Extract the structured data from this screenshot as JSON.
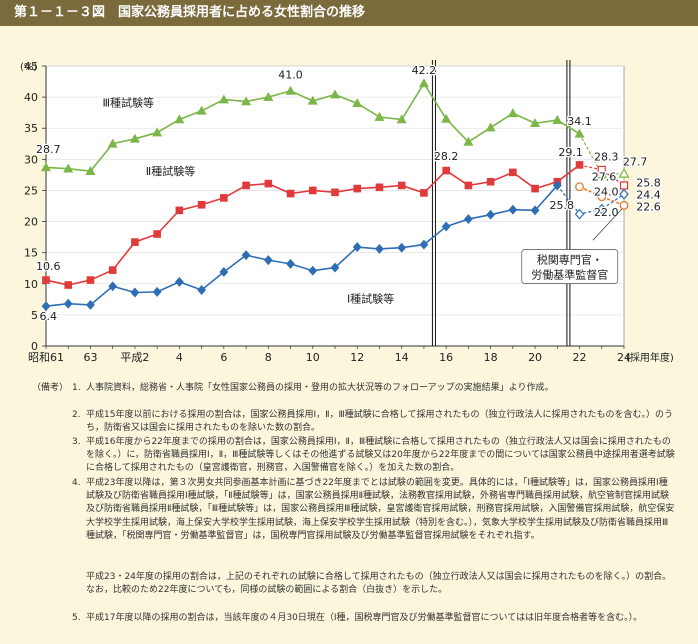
{
  "title": "第１－１－３図　国家公務員採用者に占める女性割合の推移",
  "chart_data": {
    "type": "line",
    "ylabel": "(%)",
    "xlabel": "(採用年度)",
    "ylim": [
      0,
      45
    ],
    "yticks": [
      0,
      5,
      10,
      15,
      20,
      25,
      30,
      35,
      40,
      45
    ],
    "xtick_labels": [
      {
        "year": 1986,
        "label": "昭和61"
      },
      {
        "year": 1988,
        "label": "63"
      },
      {
        "year": 1990,
        "label": "平成2"
      },
      {
        "year": 1992,
        "label": "4"
      },
      {
        "year": 1994,
        "label": "6"
      },
      {
        "year": 1996,
        "label": "8"
      },
      {
        "year": 1998,
        "label": "10"
      },
      {
        "year": 2000,
        "label": "12"
      },
      {
        "year": 2002,
        "label": "14"
      },
      {
        "year": 2004,
        "label": "16"
      },
      {
        "year": 2006,
        "label": "18"
      },
      {
        "year": 2008,
        "label": "20"
      },
      {
        "year": 2010,
        "label": "22"
      },
      {
        "year": 2012,
        "label": "24"
      }
    ],
    "series": [
      {
        "name": "Ⅲ種試験等",
        "color": "#7ab648",
        "marker": "triangle",
        "x": [
          1986,
          1987,
          1988,
          1989,
          1990,
          1991,
          1992,
          1993,
          1994,
          1995,
          1996,
          1997,
          1998,
          1999,
          2000,
          2001,
          2002,
          2003,
          2004,
          2005,
          2006,
          2007,
          2008,
          2009,
          2010
        ],
        "values": [
          28.7,
          28.5,
          28.1,
          32.5,
          33.3,
          34.3,
          36.4,
          37.8,
          39.6,
          39.3,
          40.0,
          41.0,
          39.4,
          40.4,
          39.0,
          36.8,
          36.4,
          42.2,
          36.5,
          32.8,
          35.1,
          37.4,
          35.8,
          36.3,
          34.1
        ],
        "projection": {
          "x": [
            2010,
            2011,
            2012
          ],
          "values": [
            34.1,
            27.6,
            27.7
          ]
        }
      },
      {
        "name": "Ⅱ種試験等",
        "color": "#e03a3a",
        "marker": "square",
        "x": [
          1986,
          1987,
          1988,
          1989,
          1990,
          1991,
          1992,
          1993,
          1994,
          1995,
          1996,
          1997,
          1998,
          1999,
          2000,
          2001,
          2002,
          2003,
          2004,
          2005,
          2006,
          2007,
          2008,
          2009,
          2010
        ],
        "values": [
          10.6,
          9.8,
          10.6,
          12.2,
          16.7,
          18.0,
          21.8,
          22.7,
          23.8,
          25.8,
          26.1,
          24.5,
          25.0,
          24.7,
          25.3,
          25.5,
          25.8,
          24.6,
          28.2,
          25.8,
          26.4,
          27.9,
          25.3,
          26.4,
          29.1
        ],
        "projection": {
          "x": [
            2010,
            2011,
            2012
          ],
          "values": [
            29.1,
            28.3,
            25.8
          ]
        }
      },
      {
        "name": "Ⅰ種試験等",
        "color": "#2f6eb5",
        "marker": "diamond",
        "x": [
          1986,
          1987,
          1988,
          1989,
          1990,
          1991,
          1992,
          1993,
          1994,
          1995,
          1996,
          1997,
          1998,
          1999,
          2000,
          2001,
          2002,
          2003,
          2004,
          2005,
          2006,
          2007,
          2008,
          2009
        ],
        "values": [
          6.4,
          6.8,
          6.6,
          9.6,
          8.6,
          8.7,
          10.3,
          9.0,
          11.9,
          14.6,
          13.8,
          13.2,
          12.1,
          12.6,
          15.9,
          15.6,
          15.8,
          16.3,
          19.2,
          20.4,
          21.1,
          21.9,
          21.8,
          25.8
        ],
        "projection": {
          "x": [
            2009,
            2010,
            2011,
            2012
          ],
          "values": [
            25.8,
            21.2,
            22.0,
            24.4
          ]
        }
      },
      {
        "name": "税関専門官・労働基準監督官",
        "color": "#e07a33",
        "marker": "circle",
        "x": [
          2010,
          2011,
          2012
        ],
        "values": [
          25.6,
          24.0,
          22.6
        ],
        "dashed": true
      }
    ],
    "value_labels": [
      {
        "text": "28.7"
      },
      {
        "text": "10.6"
      },
      {
        "text": "6.4"
      },
      {
        "text": "41.0"
      },
      {
        "text": "42.2"
      },
      {
        "text": "28.2"
      },
      {
        "text": "34.1"
      },
      {
        "text": "29.1"
      },
      {
        "text": "28.3"
      },
      {
        "text": "27.6"
      },
      {
        "text": "27.7"
      },
      {
        "text": "24.0"
      },
      {
        "text": "25.8"
      },
      {
        "text": "24.4"
      },
      {
        "text": "22.0"
      },
      {
        "text": "22.6"
      },
      {
        "text": "25.8"
      }
    ],
    "series_labels": [
      "Ⅲ種試験等",
      "Ⅱ種試験等",
      "Ⅰ種試験等"
    ],
    "callout": [
      "税関専門官・",
      "労働基準監督官"
    ]
  },
  "notes": {
    "head": "（備考）",
    "items": [
      {
        "num": "1.",
        "text": "人事院資料，総務省・人事院「女性国家公務員の採用・登用の拡大状況等のフォローアップの実施結果」より作成。"
      },
      {
        "num": "2.",
        "text": "平成15年度以前における採用の割合は，国家公務員採用Ⅰ，Ⅱ，Ⅲ種試験に合格して採用されたもの（独立行政法人に採用されたものを含む。）のうち，防衛省又は国会に採用されたものを除いた数の割合。"
      },
      {
        "num": "3.",
        "text": "平成16年度から22年度までの採用の割合は，国家公務員採用Ⅰ，Ⅱ，Ⅲ種試験に合格して採用されたもの（独立行政法人又は国会に採用されたものを除く。）に，防衛省職員採用Ⅰ，Ⅱ，Ⅲ種試験等しくはその他進ずる試験又は20年度から22年度までの間については国家公務員中途採用者選考試験に合格して採用されたもの（皇宮護衛官，刑務官，入国警備官を除く。）を加えた数の割合。"
      },
      {
        "num": "4.",
        "text": "平成23年度以降は，第３次男女共同参画基本計画に基づき22年度までとは試験の範囲を変更。具体的には，「Ⅰ種試験等」は，国家公務員採用Ⅰ種試験及び防衛省職員採用Ⅰ種試験，「Ⅱ種試験等」は，国家公務員採用Ⅱ種試験，法務教官採用試験，外務省専門職員採用試験，航空管制官採用試験及び防衛省職員採用Ⅱ種試験，「Ⅲ種試験等」は，国家公務員採用Ⅲ種試験，皇宮護衛官採用試験，刑務官採用試験，入国警備官採用試験，航空保安大学校学生採用試験，海上保安大学校学生採用試験，海上保安学校学生採用試験（特別を含む。），気象大学校学生採用試験及び防衛省職員採用Ⅲ種試験，「税関専門官・労働基準監督官」は，国税専門官採用試験及び労働基準監督官採用試験をそれぞれ指す。"
      },
      {
        "num": "",
        "text": "平成23・24年度の採用の割合は，上記のそれぞれの試験に合格して採用されたもの（独立行政法人又は国会に採用されたものを除く。）の割合。なお，比較のため22年度についても，同様の試験の範囲による割合（白抜き）を示した。"
      },
      {
        "num": "5.",
        "text": "平成17年度以降の採用の割合は，当該年度の４月30日現在（Ⅰ種，国税専門官及び労働基準監督官についてはは旧年度合格者等を含む。）。"
      }
    ]
  }
}
